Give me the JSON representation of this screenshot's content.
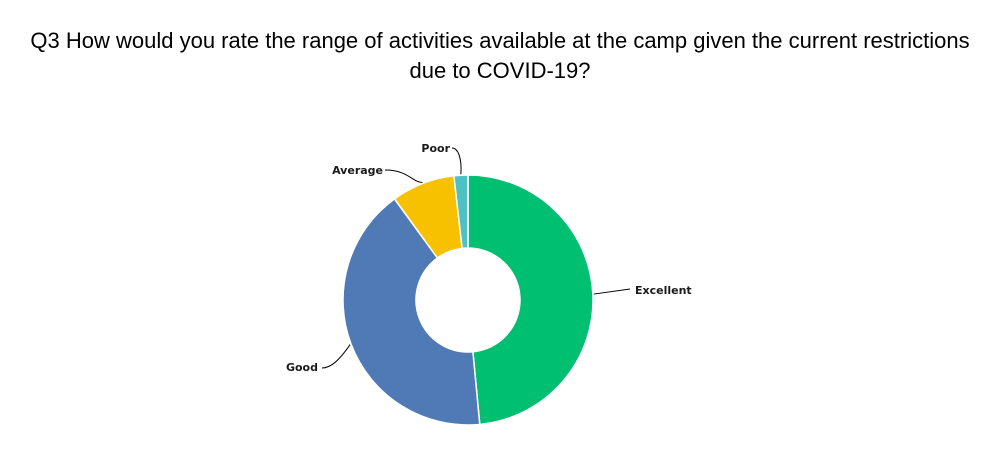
{
  "chart_data": {
    "type": "pie",
    "variant": "donut",
    "title": "Q3 How would you rate the range of activities available at the camp given the current restrictions due to COVID-19?",
    "categories": [
      "Excellent",
      "Good",
      "Average",
      "Poor"
    ],
    "values": [
      48.5,
      41.5,
      8.2,
      1.8
    ],
    "value_unit": "percent of responses (estimated)",
    "colors": [
      "#00BF71",
      "#4F7AB5",
      "#F8C100",
      "#4FC1C5"
    ],
    "legend": "none",
    "labels": "outside with leader lines"
  }
}
